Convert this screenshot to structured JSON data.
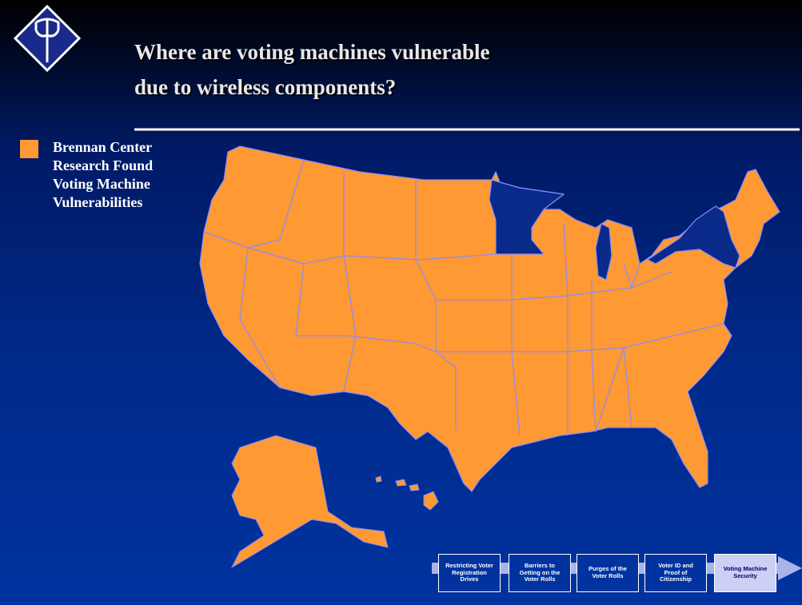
{
  "header": {
    "title_lines": [
      "Where are voting machines vulnerable",
      "due to wireless components?"
    ]
  },
  "legend": {
    "label_lines": [
      "Brennan Center",
      "Research Found",
      "Voting Machine",
      "Vulnerabilities"
    ]
  },
  "navigation": {
    "items": [
      "Restricting Voter Registration Drives",
      "Barriers to Getting on the Voter Rolls",
      "Purges of the Voter Rolls",
      "Voter ID and Proof of Citizenship",
      "Voting Machine Security"
    ]
  }
}
